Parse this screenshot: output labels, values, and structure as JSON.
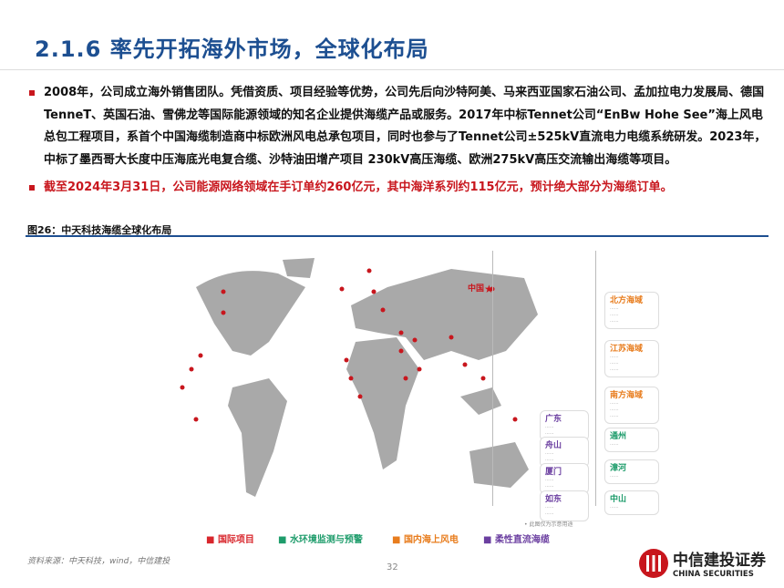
{
  "title": "2.1.6 率先开拓海外市场，全球化布局",
  "bullets": [
    "2008年，公司成立海外销售团队。凭借资质、项目经验等优势，公司先后向沙特阿美、马来西亚国家石油公司、孟加拉电力发展局、德国TenneT、英国石油、雪佛龙等国际能源领域的知名企业提供海缆产品或服务。2017年中标Tennet公司“EnBw Hohe See”海上风电总包工程项目，系首个中国海缆制造商中标欧洲风电总承包项目，同时也参与了Tennet公司±525kV直流电力电缆系统研发。2023年，中标了墨西哥大长度中压海底光电复合缆、沙特油田增产项目 230kV高压海缆、欧洲275kV高压交流输出海缆等项目。",
    "截至2024年3月31日，公司能源网络领域在手订单约260亿元，其中海洋系列约115亿元，预计绝大部分为海缆订单。"
  ],
  "figure": {
    "caption": "图26：中天科技海缆全球化布局",
    "china_label": "中国",
    "note": "• 此图仅为示意用途",
    "right_cards": [
      {
        "title": "北方海域",
        "type": "o"
      },
      {
        "title": "江苏海域",
        "type": "o"
      },
      {
        "title": "南方海域",
        "type": "o"
      },
      {
        "title": "通州",
        "type": "g"
      },
      {
        "title": "漳河",
        "type": "g"
      },
      {
        "title": "中山",
        "type": "g"
      }
    ],
    "left_cards": [
      {
        "title": "广东",
        "type": "p"
      },
      {
        "title": "舟山",
        "type": "p"
      },
      {
        "title": "厦门",
        "type": "p"
      },
      {
        "title": "如东",
        "type": "p"
      }
    ],
    "legend": [
      {
        "label": "国际项目",
        "color": "#d8262c"
      },
      {
        "label": "水环境监测与预警",
        "color": "#1e9c6b"
      },
      {
        "label": "国内海上风电",
        "color": "#e87d1e"
      },
      {
        "label": "柔性直流海缆",
        "color": "#6b3fa0"
      }
    ]
  },
  "footer": {
    "source": "资料来源：中天科技，wind，中信建投",
    "page": "32",
    "logo_cn": "中信建投证券",
    "logo_en": "CHINA SECURITIES"
  },
  "colors": {
    "accent": "#1d4f91",
    "red": "#c8161d"
  }
}
